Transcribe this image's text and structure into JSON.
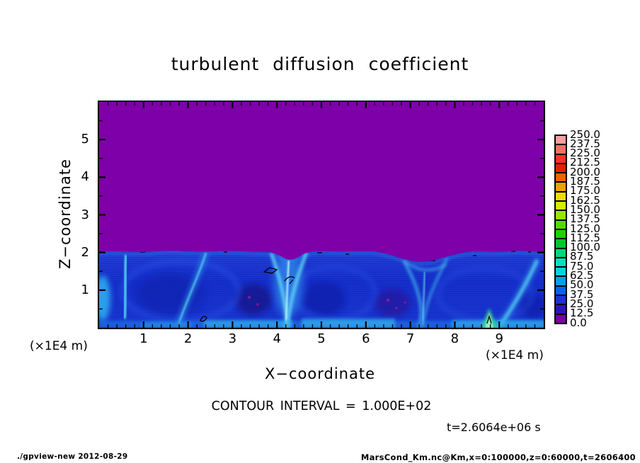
{
  "title": "turbulent diffusion coefficient",
  "axes": {
    "x_label": "X−coordinate",
    "z_label": "Z−coordinate",
    "x_unit": "(×1E4 m)",
    "z_unit": "(×1E4 m)",
    "x_ticks": [
      "1",
      "2",
      "3",
      "4",
      "5",
      "6",
      "7",
      "8",
      "9"
    ],
    "z_ticks": [
      "1",
      "2",
      "3",
      "4",
      "5"
    ]
  },
  "colorbar": {
    "labels": [
      "250.0",
      "237.5",
      "225.0",
      "212.5",
      "200.0",
      "187.5",
      "175.0",
      "162.5",
      "150.0",
      "137.5",
      "125.0",
      "112.5",
      "100.0",
      "87.5",
      "75.0",
      "62.5",
      "50.0",
      "37.5",
      "25.0",
      "12.5",
      "0.0"
    ],
    "colors": [
      "#F5A0A0",
      "#F57064",
      "#F53228",
      "#E61E00",
      "#F06400",
      "#F0A000",
      "#F0DC00",
      "#D2F000",
      "#96E600",
      "#50DC00",
      "#1ED200",
      "#00C828",
      "#00D778",
      "#00E1BE",
      "#00D2E6",
      "#00A0F0",
      "#0064F0",
      "#1E32D2",
      "#2D14B9",
      "#7800A5"
    ]
  },
  "annotations": {
    "contour_interval_text": "CONTOUR INTERVAL = 1.000E+02",
    "time_text": "t=2.6064e+06 s"
  },
  "footer": {
    "left": "./gpview-new  2012-08-29",
    "right": "MarsCond_Km.nc@Km,x=0:100000,z=0:60000,t=2606400"
  },
  "chart_data": {
    "type": "heatmap",
    "title": "turbulent diffusion coefficient",
    "xlabel": "X−coordinate",
    "ylabel": "Z−coordinate",
    "x_unit": "(×1E4 m)",
    "z_unit": "(×1E4 m)",
    "xlim": [
      0,
      10
    ],
    "zlim": [
      0,
      6
    ],
    "x_major_tick_step": 1,
    "x_minor_tick_step": 0.2,
    "z_major_tick_step": 1,
    "z_minor_tick_step": 0.5,
    "colorbar_levels": [
      0,
      12.5,
      25,
      37.5,
      50,
      62.5,
      75,
      87.5,
      100,
      112.5,
      125,
      137.5,
      150,
      162.5,
      175,
      187.5,
      200,
      212.5,
      225,
      237.5,
      250
    ],
    "contour_interval": 100,
    "time_seconds": 2606400,
    "field": {
      "upper_region_value": 0,
      "boundary_z": 2,
      "lower_region_value_range": [
        12.5,
        150
      ],
      "description": "Diffusion coefficient ≈0 (purple) above z≈2×1E4 m; turbulent convective layer below z≈2 with background values ~25–75 (dark blue) and bright plume filaments up to ~100–150 (cyan) near x≈1.8, 2.7, 4.2, 6.3, 7.5 ×1E4 m, a green-cyan spike near x≈8.8 at the surface, and sparse black contour segments (100-level) along the layer top"
    }
  }
}
